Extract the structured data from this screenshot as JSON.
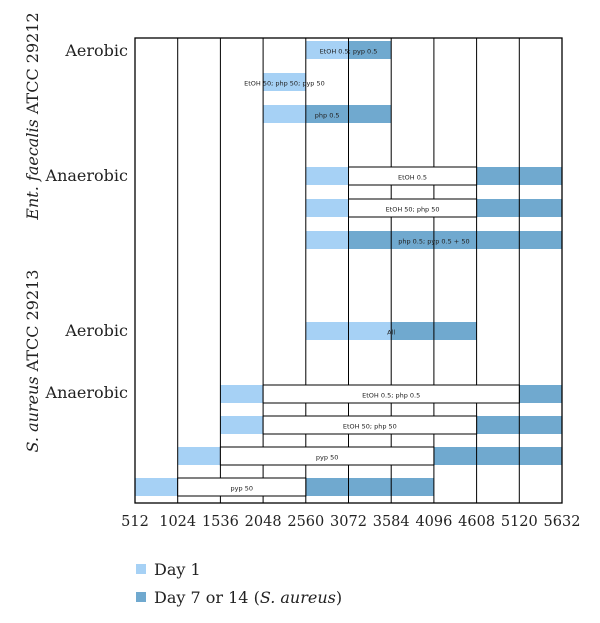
{
  "chart_data": {
    "type": "bar",
    "x_ticks": [
      512,
      1024,
      1536,
      2048,
      2560,
      3072,
      3584,
      4096,
      4608,
      5120,
      5632
    ],
    "x_unit_step": 512,
    "groups": [
      {
        "organism": "Ent. faecalis ATCC 29212",
        "condition": "Aerobic"
      },
      {
        "organism": "Ent. faecalis ATCC 29212",
        "condition": "Anaerobic"
      },
      {
        "organism": "S. aureus ATCC 29213",
        "condition": "Aerobic"
      },
      {
        "organism": "S. aureus ATCC 29213",
        "condition": "Anaerobic"
      }
    ],
    "organisms": [
      {
        "name_italic": "Ent. faecalis",
        "name_rest": " ATCC 29212"
      },
      {
        "name_italic": "S. aureus",
        "name_rest": " ATCC 29213"
      }
    ],
    "series": [
      {
        "name": "Day 1",
        "color": "#a6d1f5"
      },
      {
        "name": "Day 7 or 14",
        "name_note": "S. aureus",
        "color": "#70a9cf"
      }
    ],
    "rows": [
      {
        "label": "EtOH 0.5; pyp 0.5",
        "group": 0,
        "day1": [
          2560,
          3072
        ],
        "day7": [
          3072,
          3584
        ],
        "box": null
      },
      {
        "label": "EtOH 50; php 50; pyp 50",
        "group": 0,
        "day1": [
          2048,
          2560
        ],
        "day7": null,
        "box": null
      },
      {
        "label": "php 0.5",
        "group": 0,
        "day1": [
          2048,
          2560
        ],
        "day7": [
          2560,
          3584
        ],
        "box": null
      },
      {
        "label": "EtOH 0.5",
        "group": 1,
        "day1": [
          2560,
          3072
        ],
        "day7": [
          4608,
          5632
        ],
        "box": [
          3072,
          4608
        ]
      },
      {
        "label": "EtOH 50; php 50",
        "group": 1,
        "day1": [
          2560,
          3072
        ],
        "day7": [
          4608,
          5632
        ],
        "box": [
          3072,
          4608
        ]
      },
      {
        "label": "php 0.5; pyp 0.5 + 50",
        "group": 1,
        "day1": [
          2560,
          3072
        ],
        "day7": [
          3072,
          5632
        ],
        "box": null
      },
      {
        "label": "All",
        "group": 2,
        "day1": [
          2560,
          3584
        ],
        "day7": [
          3584,
          4608
        ],
        "box": null
      },
      {
        "label": "EtOH 0.5; php 0.5",
        "group": 3,
        "day1": [
          1536,
          2048
        ],
        "day7": [
          5120,
          5632
        ],
        "box": [
          2048,
          5120
        ]
      },
      {
        "label": "EtOH 50; php 50",
        "group": 3,
        "day1": [
          1536,
          2048
        ],
        "day7": [
          4608,
          5632
        ],
        "box": [
          2048,
          4608
        ]
      },
      {
        "label": "pyp 50",
        "group": 3,
        "day1": [
          1024,
          1536
        ],
        "day7": [
          4096,
          5632
        ],
        "box": [
          1536,
          4096
        ]
      },
      {
        "label": "pyp 50",
        "group": 3,
        "day1": [
          512,
          1024
        ],
        "day7": [
          2560,
          4096
        ],
        "box": [
          1024,
          2560
        ]
      }
    ],
    "legend_placement": "bottom-left",
    "grid": true
  }
}
